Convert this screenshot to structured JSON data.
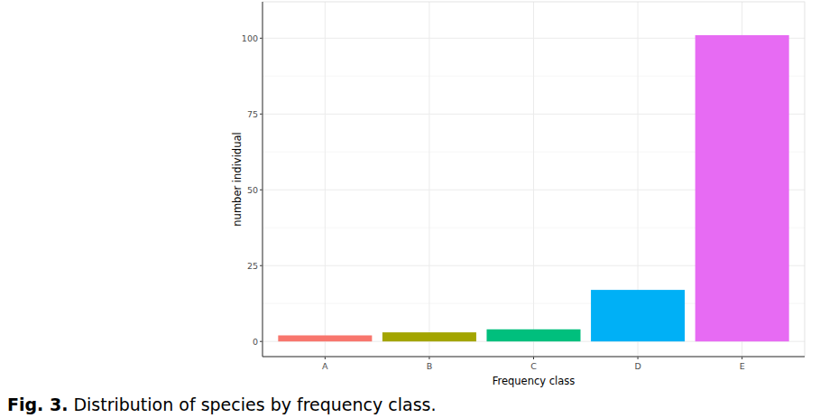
{
  "chart_data": {
    "type": "bar",
    "title": "Fig. 3. Distribution of species by frequency class.",
    "x_label": "Frequency class",
    "y_label": "number individual",
    "categories": [
      "A",
      "B",
      "C",
      "D",
      "E"
    ],
    "values": [
      2,
      3,
      4,
      17,
      101
    ],
    "colors": [
      "#F8766D",
      "#A3A500",
      "#00BF7D",
      "#00B0F6",
      "#E76BF3"
    ],
    "ylim": [
      -5,
      112
    ],
    "yticks": [
      0,
      25,
      50,
      75,
      100
    ],
    "grid": true
  }
}
